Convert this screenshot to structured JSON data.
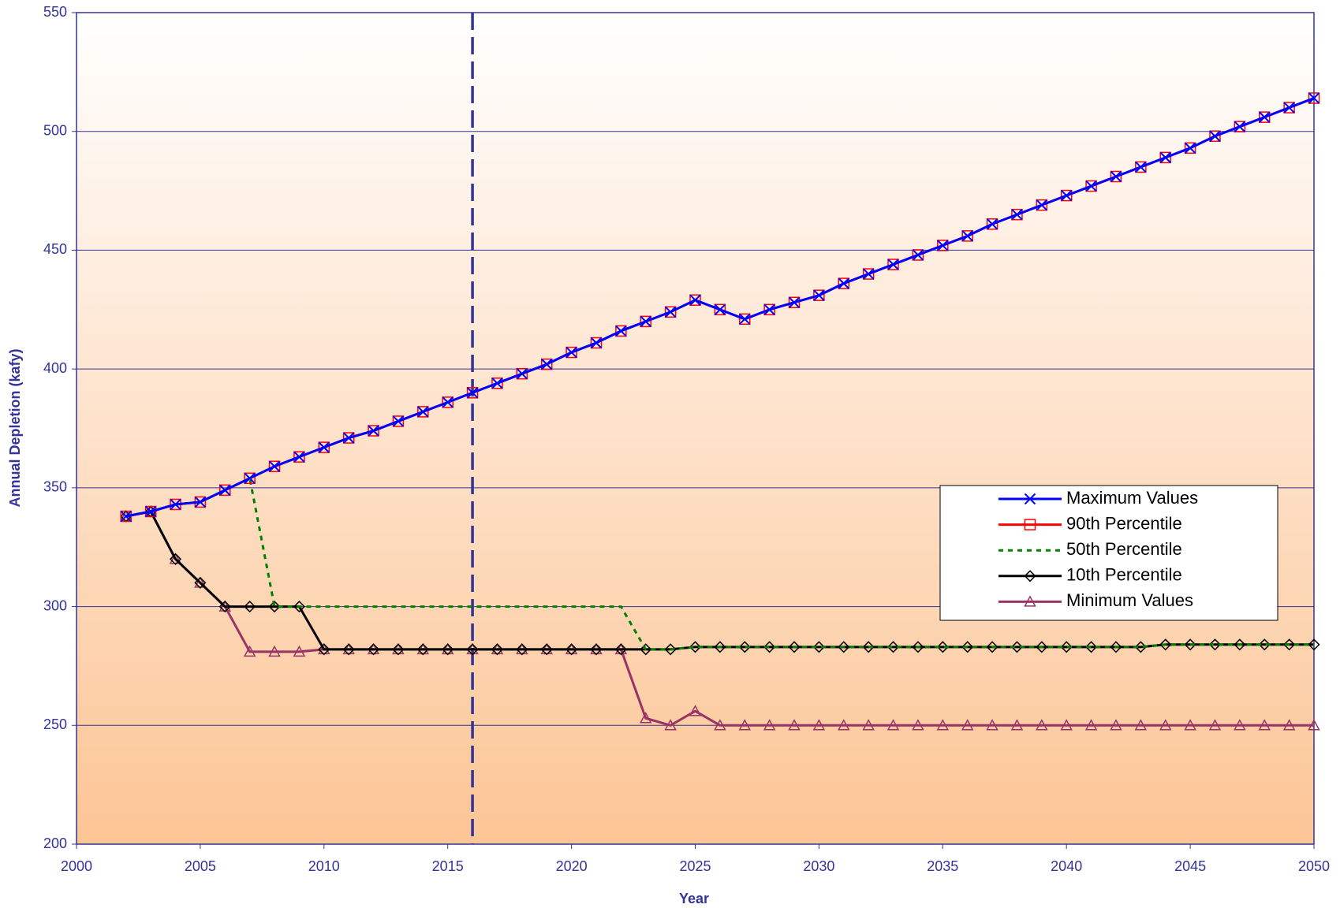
{
  "chart_data": {
    "type": "line",
    "x_label": "Year",
    "y_label": "Annual Depletion (kafy)",
    "x": [
      2002,
      2003,
      2004,
      2005,
      2006,
      2007,
      2008,
      2009,
      2010,
      2011,
      2012,
      2013,
      2014,
      2015,
      2016,
      2017,
      2018,
      2019,
      2020,
      2021,
      2022,
      2023,
      2024,
      2025,
      2026,
      2027,
      2028,
      2029,
      2030,
      2031,
      2032,
      2033,
      2034,
      2035,
      2036,
      2037,
      2038,
      2039,
      2040,
      2041,
      2042,
      2043,
      2044,
      2045,
      2046,
      2047,
      2048,
      2049,
      2050
    ],
    "series": [
      {
        "name": "Maximum Values",
        "color": "#0000ff",
        "marker": "x",
        "dash": "solid",
        "values": [
          338,
          340,
          343,
          344,
          349,
          354,
          359,
          363,
          367,
          371,
          374,
          378,
          382,
          386,
          390,
          394,
          398,
          402,
          407,
          411,
          416,
          420,
          424,
          429,
          425,
          421,
          425,
          428,
          431,
          436,
          440,
          444,
          448,
          452,
          456,
          461,
          465,
          469,
          473,
          477,
          481,
          485,
          489,
          493,
          498,
          502,
          506,
          510,
          514
        ]
      },
      {
        "name": "90th Percentile",
        "color": "#ff0000",
        "marker": "square",
        "dash": "solid",
        "values": [
          338,
          340,
          343,
          344,
          349,
          354,
          359,
          363,
          367,
          371,
          374,
          378,
          382,
          386,
          390,
          394,
          398,
          402,
          407,
          411,
          416,
          420,
          424,
          429,
          425,
          421,
          425,
          428,
          431,
          436,
          440,
          444,
          448,
          452,
          456,
          461,
          465,
          469,
          473,
          477,
          481,
          485,
          489,
          493,
          498,
          502,
          506,
          510,
          514
        ]
      },
      {
        "name": "50th Percentile",
        "color": "#008000",
        "marker": "none",
        "dash": "dotted",
        "values": [
          338,
          340,
          343,
          344,
          349,
          354,
          300,
          300,
          300,
          300,
          300,
          300,
          300,
          300,
          300,
          300,
          300,
          300,
          300,
          300,
          300,
          282,
          282,
          283,
          283,
          283,
          283,
          283,
          283,
          283,
          283,
          283,
          283,
          283,
          283,
          283,
          283,
          283,
          283,
          283,
          283,
          283,
          284,
          284,
          284,
          284,
          284,
          284,
          284
        ]
      },
      {
        "name": "10th Percentile",
        "color": "#000000",
        "marker": "diamond",
        "dash": "solid",
        "values": [
          338,
          340,
          320,
          310,
          300,
          300,
          300,
          300,
          282,
          282,
          282,
          282,
          282,
          282,
          282,
          282,
          282,
          282,
          282,
          282,
          282,
          282,
          282,
          283,
          283,
          283,
          283,
          283,
          283,
          283,
          283,
          283,
          283,
          283,
          283,
          283,
          283,
          283,
          283,
          283,
          283,
          283,
          284,
          284,
          284,
          284,
          284,
          284,
          284
        ]
      },
      {
        "name": "Minimum Values",
        "color": "#993366",
        "marker": "triangle",
        "dash": "solid",
        "values": [
          338,
          340,
          320,
          310,
          300,
          281,
          281,
          281,
          282,
          282,
          282,
          282,
          282,
          282,
          282,
          282,
          282,
          282,
          282,
          282,
          282,
          253,
          250,
          256,
          250,
          250,
          250,
          250,
          250,
          250,
          250,
          250,
          250,
          250,
          250,
          250,
          250,
          250,
          250,
          250,
          250,
          250,
          250,
          250,
          250,
          250,
          250,
          250,
          250
        ]
      }
    ],
    "reference_line_x": 2016,
    "reference_line_color": "#333399",
    "xlim": [
      2000,
      2050
    ],
    "xticks": [
      2000,
      2005,
      2010,
      2015,
      2020,
      2025,
      2030,
      2035,
      2040,
      2045,
      2050
    ],
    "ylim": [
      200,
      550
    ],
    "yticks": [
      200,
      250,
      300,
      350,
      400,
      450,
      500,
      550
    ],
    "grid": true,
    "legend": "right"
  }
}
